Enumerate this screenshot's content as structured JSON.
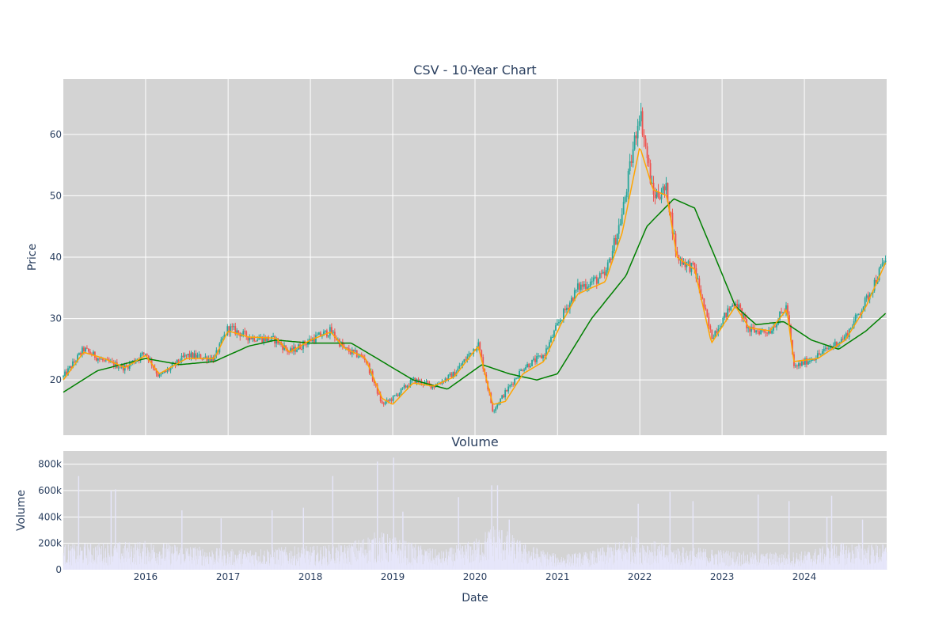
{
  "chart_data": [
    {
      "type": "candlestick",
      "title": "CSV - 10-Year Chart",
      "ylabel": "Price",
      "xlabel": "",
      "x_range": [
        "2015-01-01",
        "2024-12-31"
      ],
      "ylim": [
        11,
        69
      ],
      "y_ticks": [
        20,
        30,
        40,
        50,
        60
      ],
      "x_ticks": [
        "2016",
        "2017",
        "2018",
        "2019",
        "2020",
        "2021",
        "2022",
        "2023",
        "2024"
      ],
      "grid": true,
      "colors": {
        "increasing": "#26a69a",
        "decreasing": "#ef5350",
        "ma_short": "#ffa500",
        "ma_long": "#008000",
        "plot_bg": "#d3d3d3"
      },
      "series": [
        {
          "kind": "close",
          "x": [
            "2015-01-01",
            "2015-04-01",
            "2015-07-01",
            "2015-10-01",
            "2016-01-01",
            "2016-03-01",
            "2016-07-01",
            "2016-11-01",
            "2017-01-01",
            "2017-04-01",
            "2017-08-01",
            "2017-10-01",
            "2018-01-01",
            "2018-04-01",
            "2018-06-01",
            "2018-09-01",
            "2018-11-15",
            "2019-01-01",
            "2019-04-01",
            "2019-07-01",
            "2019-10-01",
            "2020-01-15",
            "2020-03-20",
            "2020-05-15",
            "2020-08-01",
            "2020-11-01",
            "2021-01-15",
            "2021-04-01",
            "2021-08-01",
            "2021-10-15",
            "2022-01-01",
            "2022-03-01",
            "2022-05-01",
            "2022-06-15",
            "2022-09-01",
            "2022-11-15",
            "2023-03-01",
            "2023-05-01",
            "2023-08-01",
            "2023-10-15",
            "2023-11-15",
            "2024-03-01",
            "2024-07-01",
            "2024-10-01",
            "2024-12-31"
          ],
          "values": [
            20.5,
            25,
            23,
            22,
            24.5,
            20.5,
            24,
            23.5,
            28.5,
            27,
            26.5,
            24.5,
            26.5,
            28,
            25,
            23.5,
            16,
            17,
            20,
            19,
            21,
            26,
            15,
            18,
            22,
            24,
            30,
            35,
            37,
            47,
            64,
            50,
            51,
            40,
            38,
            27,
            33,
            28,
            28,
            32,
            22,
            24,
            27,
            33,
            40
          ]
        },
        {
          "kind": "ma_short",
          "x": [
            "2015-01-01",
            "2015-04-01",
            "2015-07-01",
            "2015-10-01",
            "2016-01-01",
            "2016-03-01",
            "2016-07-01",
            "2016-11-01",
            "2017-01-01",
            "2017-04-01",
            "2017-08-01",
            "2017-10-01",
            "2018-01-01",
            "2018-04-01",
            "2018-06-01",
            "2018-09-01",
            "2018-11-15",
            "2019-01-01",
            "2019-04-01",
            "2019-07-01",
            "2019-10-01",
            "2020-01-15",
            "2020-03-20",
            "2020-05-15",
            "2020-08-01",
            "2020-11-01",
            "2021-01-15",
            "2021-04-01",
            "2021-08-01",
            "2021-10-15",
            "2022-01-01",
            "2022-03-01",
            "2022-05-01",
            "2022-06-15",
            "2022-09-01",
            "2022-11-15",
            "2023-03-01",
            "2023-05-01",
            "2023-08-01",
            "2023-10-15",
            "2023-11-15",
            "2024-03-01",
            "2024-07-01",
            "2024-10-01",
            "2024-12-31"
          ],
          "values": [
            20,
            24.5,
            23.5,
            22,
            24,
            21,
            23.5,
            23.5,
            28,
            27,
            26.8,
            24.5,
            26.5,
            27.8,
            25.2,
            23.6,
            17,
            16,
            19.5,
            19,
            20.5,
            25.5,
            16,
            16.5,
            21,
            23,
            29,
            34,
            36,
            44,
            58,
            51,
            50,
            40,
            38,
            26,
            32,
            28.5,
            28,
            31.5,
            23,
            23.5,
            26.5,
            32,
            39.5
          ]
        },
        {
          "kind": "ma_long",
          "x": [
            "2015-01-01",
            "2015-06-01",
            "2016-01-01",
            "2016-06-01",
            "2016-11-01",
            "2017-04-01",
            "2017-08-01",
            "2018-01-01",
            "2018-07-01",
            "2018-10-01",
            "2019-04-01",
            "2019-09-01",
            "2020-02-01",
            "2020-06-01",
            "2020-10-01",
            "2021-01-01",
            "2021-06-01",
            "2021-11-01",
            "2022-02-01",
            "2022-06-01",
            "2022-09-01",
            "2022-12-01",
            "2023-03-01",
            "2023-06-01",
            "2023-10-01",
            "2024-02-01",
            "2024-06-01",
            "2024-10-01",
            "2024-12-31"
          ],
          "values": [
            18,
            21.5,
            23.5,
            22.5,
            23,
            25.5,
            26.5,
            26,
            26,
            24,
            20,
            18.5,
            22.5,
            21,
            20,
            21,
            30,
            37,
            45,
            49.5,
            48,
            40,
            32,
            29,
            29.5,
            26.5,
            25,
            28,
            31
          ]
        }
      ]
    },
    {
      "type": "bar",
      "title": "Volume",
      "ylabel": "Volume",
      "xlabel": "Date",
      "ylim": [
        0,
        900000
      ],
      "y_ticks": [
        0,
        200000,
        400000,
        600000,
        800000
      ],
      "y_tick_labels": [
        "0",
        "200k",
        "400k",
        "600k",
        "800k"
      ],
      "x_ticks": [
        "2016",
        "2017",
        "2018",
        "2019",
        "2020",
        "2021",
        "2022",
        "2023",
        "2024"
      ],
      "grid": true,
      "colors": {
        "bar": "#e6e6fa",
        "plot_bg": "#d3d3d3"
      },
      "profile": {
        "x": [
          "2015-01-01",
          "2015-06-01",
          "2016-01-01",
          "2016-06-01",
          "2017-01-01",
          "2017-06-01",
          "2018-01-01",
          "2018-06-01",
          "2018-11-01",
          "2019-03-01",
          "2019-08-01",
          "2020-01-01",
          "2020-04-01",
          "2020-08-01",
          "2021-01-01",
          "2021-06-01",
          "2021-12-01",
          "2022-06-01",
          "2023-01-01",
          "2023-06-01",
          "2024-01-01",
          "2024-06-01",
          "2024-12-31"
        ],
        "values": [
          150000,
          160000,
          170000,
          150000,
          120000,
          130000,
          140000,
          150000,
          230000,
          170000,
          110000,
          180000,
          280000,
          160000,
          90000,
          110000,
          200000,
          140000,
          120000,
          100000,
          110000,
          160000,
          150000
        ]
      },
      "spikes": [
        {
          "x": "2015-03-10",
          "v": 710000
        },
        {
          "x": "2015-08-01",
          "v": 600000
        },
        {
          "x": "2015-08-20",
          "v": 610000
        },
        {
          "x": "2016-06-10",
          "v": 450000
        },
        {
          "x": "2016-12-01",
          "v": 390000
        },
        {
          "x": "2017-07-15",
          "v": 450000
        },
        {
          "x": "2017-12-01",
          "v": 470000
        },
        {
          "x": "2018-04-10",
          "v": 710000
        },
        {
          "x": "2018-10-25",
          "v": 820000
        },
        {
          "x": "2019-01-05",
          "v": 850000
        },
        {
          "x": "2019-02-15",
          "v": 440000
        },
        {
          "x": "2019-10-20",
          "v": 550000
        },
        {
          "x": "2020-03-15",
          "v": 640000
        },
        {
          "x": "2020-04-10",
          "v": 640000
        },
        {
          "x": "2020-06-01",
          "v": 380000
        },
        {
          "x": "2021-12-25",
          "v": 500000
        },
        {
          "x": "2022-05-15",
          "v": 590000
        },
        {
          "x": "2022-08-25",
          "v": 520000
        },
        {
          "x": "2023-06-10",
          "v": 570000
        },
        {
          "x": "2023-10-25",
          "v": 520000
        },
        {
          "x": "2024-04-10",
          "v": 400000
        },
        {
          "x": "2024-05-01",
          "v": 560000
        },
        {
          "x": "2024-09-15",
          "v": 380000
        }
      ]
    }
  ]
}
